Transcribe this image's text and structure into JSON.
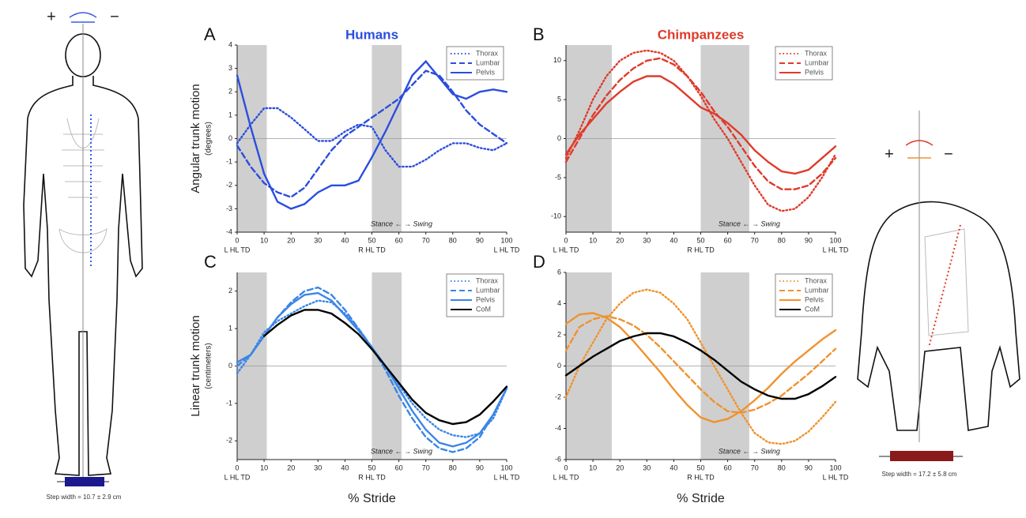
{
  "illustrations": {
    "human": {
      "plus": "+",
      "minus": "−",
      "step_width": "Step width = 10.7 ± 2.9 cm"
    },
    "chimp": {
      "plus": "+",
      "minus": "−",
      "step_width": "Step width = 17.2 ± 5.8 cm"
    }
  },
  "chart_data": [
    {
      "type": "line",
      "panel": "A",
      "title": "Humans",
      "title_color": "#2b4de0",
      "ylabel": "Angular trunk motion",
      "ylabel_unit": "(degrees)",
      "annotation": "Stance ←  → Swing",
      "legend": "upper right",
      "zero_line": true,
      "x": [
        0,
        5,
        10,
        15,
        20,
        25,
        30,
        35,
        40,
        45,
        50,
        55,
        60,
        65,
        70,
        75,
        80,
        85,
        90,
        95,
        100
      ],
      "xlim": [
        0,
        100
      ],
      "xticks": [
        0,
        10,
        20,
        30,
        40,
        50,
        60,
        70,
        80,
        90,
        100
      ],
      "events": [
        {
          "x": 0,
          "label": "L HL TD"
        },
        {
          "x": 50,
          "label": "R HL TD"
        },
        {
          "x": 100,
          "label": "L HL TD"
        }
      ],
      "shaded": [
        [
          0,
          11
        ],
        [
          50,
          61
        ]
      ],
      "ylim": [
        -4,
        4
      ],
      "yticks": [
        -4,
        -3,
        -2,
        -1,
        0,
        1,
        2,
        3,
        4
      ],
      "series": [
        {
          "name": "Thorax",
          "color": "#2b4de0",
          "dash": "dotted",
          "values": [
            -0.2,
            0.6,
            1.3,
            1.3,
            0.9,
            0.4,
            -0.1,
            -0.1,
            0.3,
            0.6,
            0.5,
            -0.5,
            -1.2,
            -1.2,
            -0.9,
            -0.5,
            -0.2,
            -0.2,
            -0.4,
            -0.5,
            -0.2
          ]
        },
        {
          "name": "Lumbar",
          "color": "#2b4de0",
          "dash": "dashed",
          "values": [
            -0.3,
            -1.2,
            -1.9,
            -2.3,
            -2.5,
            -2.1,
            -1.3,
            -0.5,
            0.1,
            0.5,
            0.9,
            1.3,
            1.7,
            2.3,
            2.9,
            2.7,
            2.0,
            1.2,
            0.6,
            0.2,
            -0.2
          ]
        },
        {
          "name": "Pelvis",
          "color": "#2b4de0",
          "dash": "solid",
          "values": [
            2.7,
            0.5,
            -1.5,
            -2.7,
            -3.0,
            -2.8,
            -2.3,
            -2.0,
            -2.0,
            -1.8,
            -0.8,
            0.3,
            1.5,
            2.7,
            3.3,
            2.6,
            1.9,
            1.7,
            2.0,
            2.1,
            2.0
          ]
        }
      ]
    },
    {
      "type": "line",
      "panel": "B",
      "title": "Chimpanzees",
      "title_color": "#e03a2a",
      "annotation": "Stance ←  → Swing",
      "legend": "upper right",
      "zero_line": true,
      "x": [
        0,
        5,
        10,
        15,
        20,
        25,
        30,
        35,
        40,
        45,
        50,
        55,
        60,
        65,
        70,
        75,
        80,
        85,
        90,
        95,
        100
      ],
      "xlim": [
        0,
        100
      ],
      "xticks": [
        0,
        10,
        20,
        30,
        40,
        50,
        60,
        70,
        80,
        90,
        100
      ],
      "events": [
        {
          "x": 0,
          "label": "L HL TD"
        },
        {
          "x": 50,
          "label": "R HL TD"
        },
        {
          "x": 100,
          "label": "L HL TD"
        }
      ],
      "shaded": [
        [
          0,
          17
        ],
        [
          50,
          68
        ]
      ],
      "ylim": [
        -12,
        12
      ],
      "yticks": [
        -10,
        -5,
        0,
        5,
        10
      ],
      "series": [
        {
          "name": "Thorax",
          "color": "#e03a2a",
          "dash": "dotted",
          "values": [
            -2.5,
            1,
            5,
            8,
            10,
            11,
            11.3,
            11,
            10,
            8,
            5.5,
            2.5,
            0,
            -3,
            -6,
            -8.5,
            -9.3,
            -9,
            -7.5,
            -5,
            -2
          ]
        },
        {
          "name": "Lumbar",
          "color": "#e03a2a",
          "dash": "dashed",
          "values": [
            -3,
            0,
            3,
            5.5,
            7.5,
            9,
            10,
            10.3,
            9.5,
            8,
            6,
            3.5,
            1.5,
            -1,
            -3.5,
            -5.5,
            -6.5,
            -6.5,
            -6,
            -4.5,
            -2.5
          ]
        },
        {
          "name": "Pelvis",
          "color": "#e03a2a",
          "dash": "solid",
          "values": [
            -2,
            0.5,
            2.5,
            4.5,
            6,
            7.3,
            8,
            8,
            7,
            5.5,
            4,
            3.2,
            2,
            0.5,
            -1.5,
            -3,
            -4.2,
            -4.5,
            -4,
            -2.5,
            -1
          ]
        }
      ]
    },
    {
      "type": "line",
      "panel": "C",
      "ylabel": "Linear trunk motion",
      "ylabel_unit": "(centimeters)",
      "xlabel": "% Stride",
      "annotation": "Stance ←  → Swing",
      "legend": "upper right",
      "zero_line": true,
      "x": [
        0,
        5,
        10,
        15,
        20,
        25,
        30,
        35,
        40,
        45,
        50,
        55,
        60,
        65,
        70,
        75,
        80,
        85,
        90,
        95,
        100
      ],
      "xlim": [
        0,
        100
      ],
      "xticks": [
        0,
        10,
        20,
        30,
        40,
        50,
        60,
        70,
        80,
        90,
        100
      ],
      "events": [
        {
          "x": 0,
          "label": "L HL TD"
        },
        {
          "x": 50,
          "label": "R HL TD"
        },
        {
          "x": 100,
          "label": "L HL TD"
        }
      ],
      "shaded": [
        [
          0,
          11
        ],
        [
          50,
          61
        ]
      ],
      "ylim": [
        -2.5,
        2.5
      ],
      "yticks": [
        -2,
        -1,
        0,
        1,
        2
      ],
      "series": [
        {
          "name": "Thorax",
          "color": "#3a86e6",
          "dash": "dotted",
          "values": [
            -0.2,
            0.3,
            0.9,
            1.2,
            1.4,
            1.6,
            1.75,
            1.7,
            1.4,
            1.0,
            0.5,
            0,
            -0.5,
            -1.0,
            -1.4,
            -1.7,
            -1.85,
            -1.9,
            -1.8,
            -1.4,
            -0.6
          ]
        },
        {
          "name": "Lumbar",
          "color": "#3a86e6",
          "dash": "dashed",
          "values": [
            0,
            0.3,
            0.8,
            1.3,
            1.7,
            2.0,
            2.1,
            1.9,
            1.5,
            1.0,
            0.5,
            -0.1,
            -0.8,
            -1.4,
            -1.9,
            -2.2,
            -2.3,
            -2.2,
            -1.9,
            -1.3,
            -0.6
          ]
        },
        {
          "name": "Pelvis",
          "color": "#3a86e6",
          "dash": "solid",
          "values": [
            0.1,
            0.3,
            0.8,
            1.3,
            1.65,
            1.9,
            1.95,
            1.75,
            1.35,
            0.95,
            0.5,
            0,
            -0.6,
            -1.2,
            -1.7,
            -2.05,
            -2.15,
            -2.05,
            -1.8,
            -1.3,
            -0.6
          ]
        },
        {
          "name": "CoM",
          "color": "#000000",
          "dash": "solid",
          "values": [
            null,
            null,
            0.8,
            1.1,
            1.35,
            1.5,
            1.5,
            1.4,
            1.15,
            0.85,
            0.45,
            0.0,
            -0.45,
            -0.9,
            -1.25,
            -1.45,
            -1.55,
            -1.5,
            -1.3,
            -0.95,
            -0.55
          ]
        }
      ]
    },
    {
      "type": "line",
      "panel": "D",
      "xlabel": "% Stride",
      "annotation": "Stance ←  → Swing",
      "legend": "upper right",
      "zero_line": true,
      "x": [
        0,
        5,
        10,
        15,
        20,
        25,
        30,
        35,
        40,
        45,
        50,
        55,
        60,
        65,
        70,
        75,
        80,
        85,
        90,
        95,
        100
      ],
      "xlim": [
        0,
        100
      ],
      "xticks": [
        0,
        10,
        20,
        30,
        40,
        50,
        60,
        70,
        80,
        90,
        100
      ],
      "events": [
        {
          "x": 0,
          "label": "L HL TD"
        },
        {
          "x": 50,
          "label": "R HL TD"
        },
        {
          "x": 100,
          "label": "L HL TD"
        }
      ],
      "shaded": [
        [
          0,
          17
        ],
        [
          50,
          68
        ]
      ],
      "ylim": [
        -6,
        6
      ],
      "yticks": [
        -6,
        -4,
        -2,
        0,
        2,
        4,
        6
      ],
      "series": [
        {
          "name": "Thorax",
          "color": "#f0922e",
          "dash": "dotted",
          "values": [
            -2,
            0,
            1.5,
            3,
            4,
            4.7,
            4.9,
            4.7,
            4,
            3,
            1.5,
            0,
            -1.5,
            -3,
            -4.3,
            -4.9,
            -5,
            -4.8,
            -4.2,
            -3.3,
            -2.3
          ]
        },
        {
          "name": "Lumbar",
          "color": "#f0922e",
          "dash": "dashed",
          "values": [
            1,
            2.5,
            3,
            3.2,
            3,
            2.6,
            2,
            1.2,
            0.3,
            -0.6,
            -1.5,
            -2.3,
            -2.9,
            -3,
            -2.8,
            -2.4,
            -1.9,
            -1.2,
            -0.5,
            0.3,
            1.1
          ]
        },
        {
          "name": "Pelvis",
          "color": "#f0922e",
          "dash": "solid",
          "values": [
            2.7,
            3.3,
            3.4,
            3.1,
            2.5,
            1.6,
            0.6,
            -0.4,
            -1.5,
            -2.5,
            -3.3,
            -3.6,
            -3.4,
            -2.9,
            -2.2,
            -1.4,
            -0.5,
            0.3,
            1,
            1.7,
            2.3
          ]
        },
        {
          "name": "CoM",
          "color": "#000000",
          "dash": "solid",
          "values": [
            -0.6,
            0,
            0.6,
            1.1,
            1.6,
            1.9,
            2.1,
            2.1,
            1.9,
            1.5,
            1.0,
            0.4,
            -0.3,
            -1.0,
            -1.5,
            -1.9,
            -2.1,
            -2.1,
            -1.8,
            -1.3,
            -0.7
          ]
        }
      ]
    }
  ]
}
